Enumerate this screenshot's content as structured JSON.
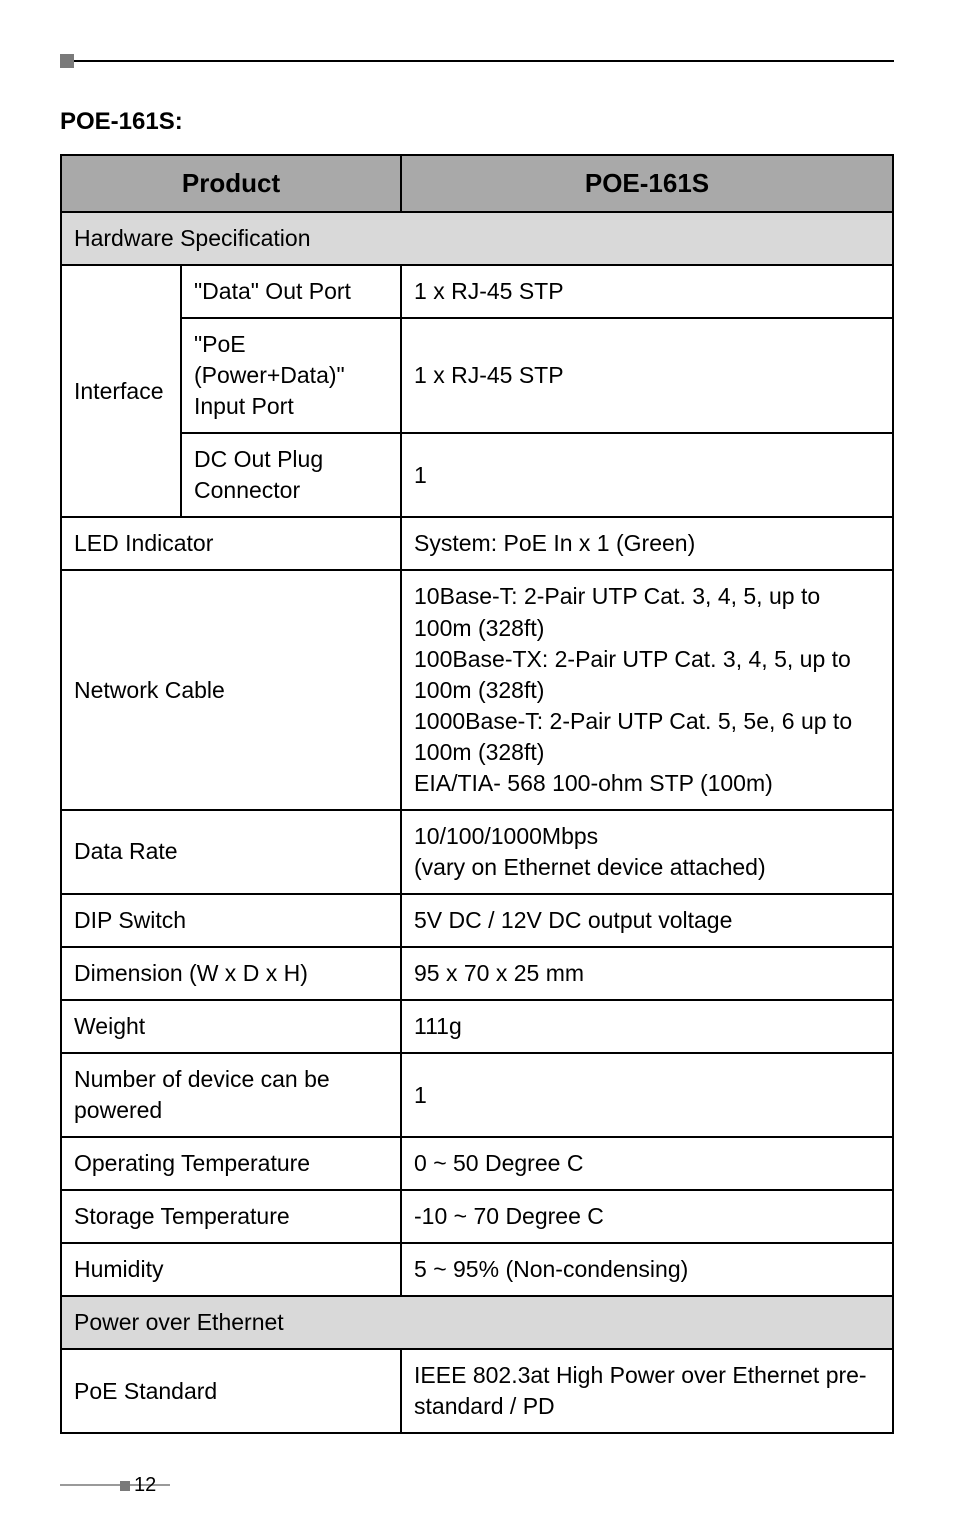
{
  "section_title": "POE-161S:",
  "table": {
    "header": {
      "left": "Product",
      "right": "POE-161S"
    },
    "sections": {
      "hw_spec": "Hardware Specification",
      "poe": "Power over Ethernet"
    },
    "rows": {
      "interface_label": "Interface",
      "data_out_port": {
        "label": "\"Data\" Out Port",
        "value": "1 x RJ-45 STP"
      },
      "poe_input_port": {
        "label": "\"PoE (Power+Data)\" Input Port",
        "value": "1 x RJ-45 STP"
      },
      "dc_out_plug": {
        "label": "DC Out Plug Connector",
        "value": "1"
      },
      "led_indicator": {
        "label": "LED Indicator",
        "value": "System: PoE In x 1 (Green)"
      },
      "network_cable": {
        "label": "Network Cable",
        "value": "10Base-T: 2-Pair UTP Cat. 3, 4, 5, up to 100m (328ft)\n100Base-TX: 2-Pair UTP Cat. 3, 4, 5, up to 100m (328ft)\n1000Base-T: 2-Pair UTP Cat. 5, 5e, 6 up to 100m (328ft)\nEIA/TIA- 568 100-ohm STP (100m)"
      },
      "data_rate": {
        "label": "Data Rate",
        "value": "10/100/1000Mbps\n(vary on Ethernet device attached)"
      },
      "dip_switch": {
        "label": "DIP Switch",
        "value": "5V DC / 12V DC output voltage"
      },
      "dimension": {
        "label": "Dimension (W x D x H)",
        "value": "95 x 70 x 25 mm"
      },
      "weight": {
        "label": "Weight",
        "value": "111g"
      },
      "num_device": {
        "label": "Number of device can be powered",
        "value": "1"
      },
      "op_temp": {
        "label": "Operating Temperature",
        "value": "0 ~ 50 Degree C"
      },
      "storage_temp": {
        "label": "Storage Temperature",
        "value": "-10 ~ 70 Degree C"
      },
      "humidity": {
        "label": "Humidity",
        "value": "5 ~ 95% (Non-condensing)"
      },
      "poe_standard": {
        "label": "PoE Standard",
        "value": "IEEE 802.3at High Power over Ethernet pre-standard / PD"
      }
    }
  },
  "page_number": "12",
  "colors": {
    "header_bg": "#a9a9a9",
    "section_bg": "#d9d9d9",
    "border": "#000000",
    "marker": "#7a7a7a"
  },
  "typography": {
    "title_fontsize": 24,
    "cell_fontsize": 23,
    "header_fontsize": 26
  }
}
